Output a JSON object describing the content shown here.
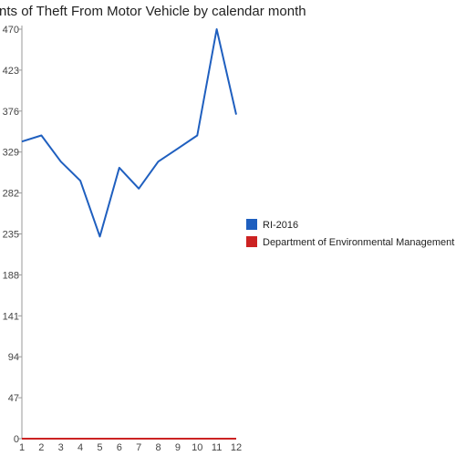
{
  "chart_data": {
    "type": "line",
    "title": "Incidents of Theft From Motor Vehicle by calendar month",
    "categories": [
      "1",
      "2",
      "3",
      "4",
      "5",
      "6",
      "7",
      "8",
      "9",
      "10",
      "11",
      "12"
    ],
    "ylim": [
      0,
      470
    ],
    "yticks": [
      0,
      47,
      94,
      141,
      188,
      235,
      282,
      329,
      376,
      423,
      470
    ],
    "grid": false,
    "legend_position": "right",
    "series": [
      {
        "name": "RI-2016",
        "color": "#1f5fbf",
        "values": [
          341,
          348,
          318,
          296,
          232,
          311,
          287,
          318,
          333,
          348,
          470,
          372
        ]
      },
      {
        "name": "Department of Environmental Management",
        "color": "#cc2222",
        "values": [
          0,
          0,
          0,
          0,
          0,
          0,
          0,
          0,
          0,
          0,
          0,
          0
        ]
      }
    ]
  }
}
